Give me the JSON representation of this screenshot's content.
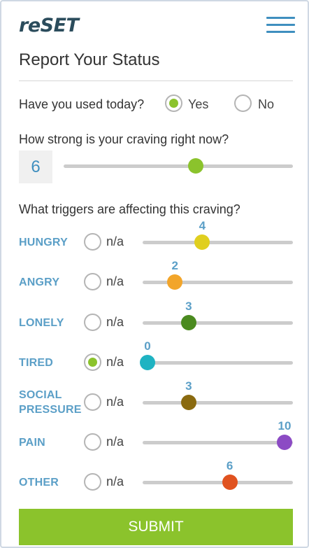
{
  "header": {
    "logo": "reSET"
  },
  "page": {
    "title": "Report Your Status"
  },
  "used_today": {
    "question": "Have you used today?",
    "options": [
      {
        "label": "Yes",
        "checked": true
      },
      {
        "label": "No",
        "checked": false
      }
    ]
  },
  "craving": {
    "question": "How strong is your craving right now?",
    "value": "6",
    "level": 6,
    "max": 10,
    "color": "#8bc32c"
  },
  "triggers": {
    "question": "What triggers are affecting this craving?",
    "na_label": "n/a",
    "items": [
      {
        "name": "HUNGRY",
        "value": "4",
        "level": 4,
        "na": false,
        "color": "#e0cf1f"
      },
      {
        "name": "ANGRY",
        "value": "2",
        "level": 2,
        "na": false,
        "color": "#f2a52a"
      },
      {
        "name": "LONELY",
        "value": "3",
        "level": 3,
        "na": false,
        "color": "#4a8a1f"
      },
      {
        "name": "TIRED",
        "value": "0",
        "level": 0,
        "na": true,
        "color": "#1fb3c2"
      },
      {
        "name": "SOCIAL\nPRESSURE",
        "value": "3",
        "level": 3,
        "na": false,
        "color": "#8a6a10"
      },
      {
        "name": "PAIN",
        "value": "10",
        "level": 10,
        "na": false,
        "color": "#8c4bc4"
      },
      {
        "name": "OTHER",
        "value": "6",
        "level": 6,
        "na": false,
        "color": "#e0521f"
      }
    ]
  },
  "actions": {
    "submit": "SUBMIT"
  }
}
